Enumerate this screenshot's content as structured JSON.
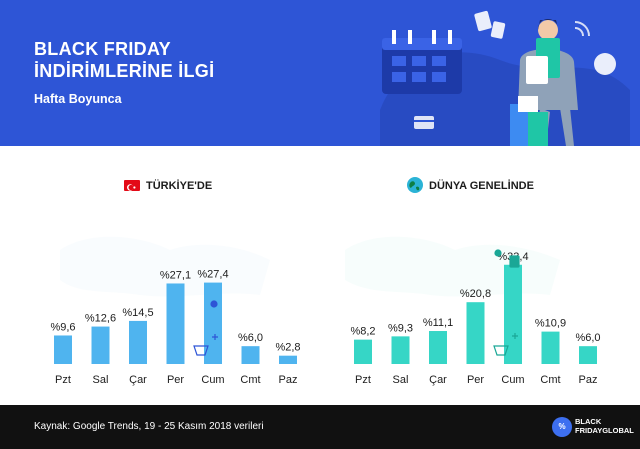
{
  "header": {
    "title_line1": "BLACK FRIDAY",
    "title_line2": "İNDİRİMLERİNE İLGİ",
    "subtitle": "Hafta Boyunca"
  },
  "footer": {
    "source": "Kaynak: Google Trends, 19 - 25 Kasım 2018 verileri",
    "logo_mark": "%",
    "logo_line1": "BLACK",
    "logo_line2": "FRIDAYGLOBAL"
  },
  "colors": {
    "header_bg": "#2e55d6",
    "turkey_bar": "#4fb4ef",
    "world_bar": "#36d6c6",
    "footer_bg": "#111111"
  },
  "chart_data": [
    {
      "type": "bar",
      "title": "TÜRKİYE'DE",
      "categories": [
        "Pzt",
        "Sal",
        "Çar",
        "Per",
        "Cum",
        "Cmt",
        "Paz"
      ],
      "values": [
        9.6,
        12.6,
        14.5,
        27.1,
        27.4,
        6.0,
        2.8
      ],
      "data_labels": [
        "%9,6",
        "%12,6",
        "%14,5",
        "%27,1",
        "%27,4",
        "%6,0",
        "%2,8"
      ],
      "ylim": [
        0,
        35
      ],
      "grid": false
    },
    {
      "type": "bar",
      "title": "DÜNYA GENELİNDE",
      "categories": [
        "Pzt",
        "Sal",
        "Çar",
        "Per",
        "Cum",
        "Cmt",
        "Paz"
      ],
      "values": [
        8.2,
        9.3,
        11.1,
        20.8,
        33.4,
        10.9,
        6.0
      ],
      "data_labels": [
        "%8,2",
        "%9,3",
        "%11,1",
        "%20,8",
        "%33,4",
        "%10,9",
        "%6,0"
      ],
      "ylim": [
        0,
        35
      ],
      "grid": false
    }
  ]
}
